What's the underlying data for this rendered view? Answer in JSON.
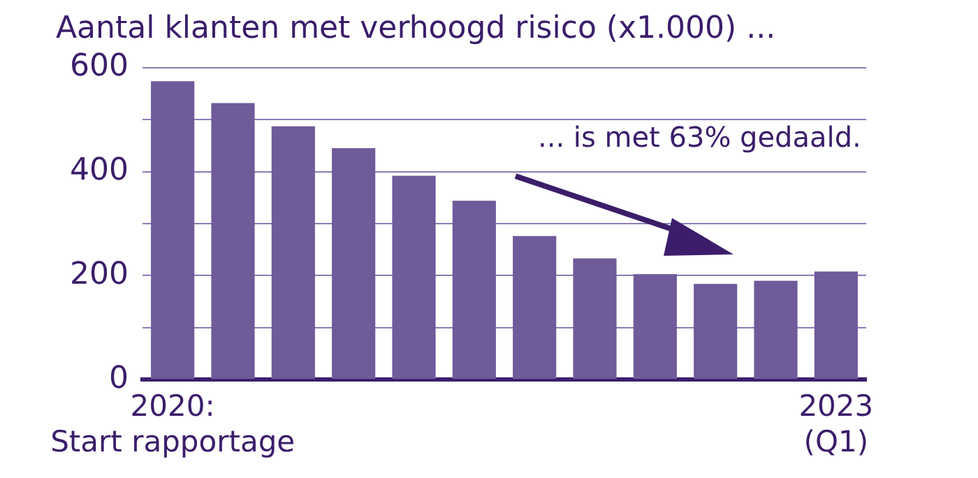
{
  "chart_data": {
    "type": "bar",
    "title": "Aantal klanten met verhoogd risico (x1.000) ...",
    "categories": [
      "2020:\nStart rapportage",
      null,
      null,
      null,
      null,
      null,
      null,
      null,
      null,
      null,
      null,
      "2023\n(Q1)"
    ],
    "values": [
      574,
      532,
      487,
      445,
      392,
      344,
      276,
      233,
      203,
      184,
      190,
      208
    ],
    "color": "#6f5a9a",
    "ylim": [
      0,
      600
    ],
    "yticks": [
      0,
      {
        "value": 100,
        "label": null
      },
      200,
      {
        "value": 300,
        "label": null
      },
      400,
      {
        "value": 500,
        "label": null
      },
      600
    ],
    "grid": "y",
    "annotations": [
      "... is met 63% gedaald."
    ]
  }
}
